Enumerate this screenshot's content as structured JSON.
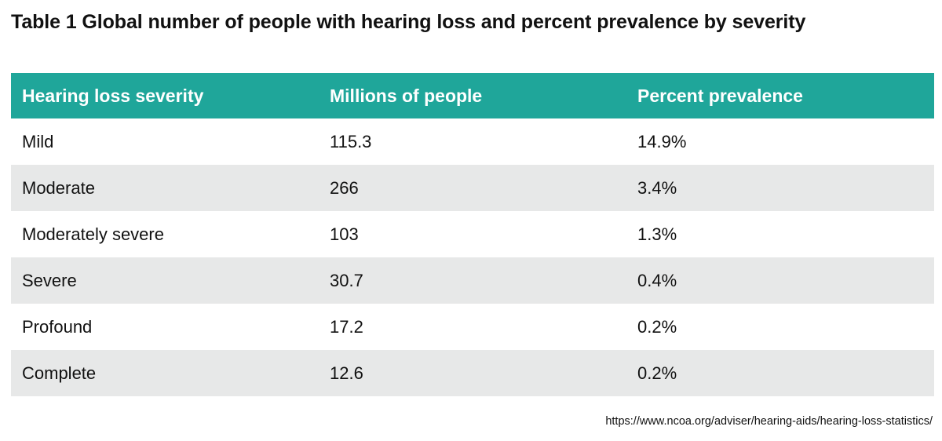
{
  "title": "Table 1 Global number of people with hearing loss and percent prevalence by severity",
  "table": {
    "headers": [
      "Hearing loss severity",
      "Millions of people",
      "Percent prevalence"
    ],
    "rows": [
      [
        "Mild",
        "115.3",
        "14.9%"
      ],
      [
        "Moderate",
        "266",
        "3.4%"
      ],
      [
        "Moderately severe",
        "103",
        "1.3%"
      ],
      [
        "Severe",
        "30.7",
        "0.4%"
      ],
      [
        "Profound",
        "17.2",
        "0.2%"
      ],
      [
        "Complete",
        "12.6",
        "0.2%"
      ]
    ]
  },
  "source": "https://www.ncoa.org/adviser/hearing-aids/hearing-loss-statistics/",
  "colors": {
    "header_bg": "#1fa69a",
    "header_text": "#ffffff",
    "row_stripe": "#e7e8e8"
  }
}
